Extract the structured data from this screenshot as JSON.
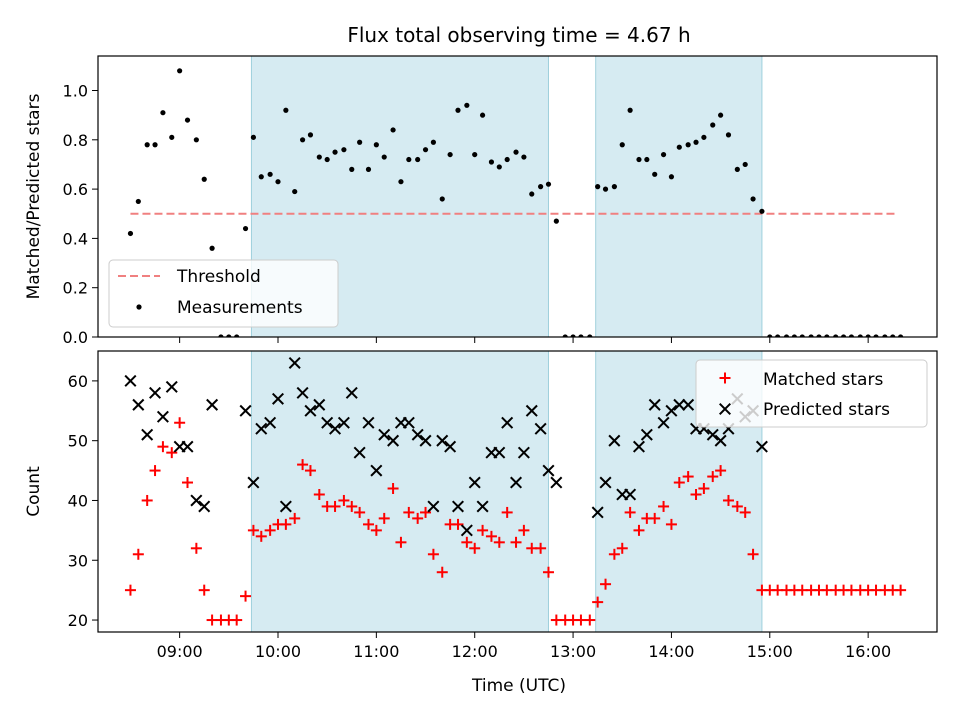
{
  "chart_data": [
    {
      "type": "scatter",
      "panel": "top",
      "title": "Flux total observing time = 4.67 h",
      "ylabel": "Matched/Predicted stars",
      "xlabel": "",
      "xlim": [
        8.17,
        16.7
      ],
      "ylim": [
        0,
        1.14
      ],
      "yticks": [
        0,
        0.2,
        0.4,
        0.6,
        0.8,
        1.0
      ],
      "ytick_labels": [
        "0.0",
        "0.2",
        "0.4",
        "0.6",
        "0.8",
        "1.0"
      ],
      "shaded_intervals": [
        [
          9.73,
          12.75
        ],
        [
          13.23,
          14.92
        ]
      ],
      "threshold": {
        "label": "Threshold",
        "value": 0.5,
        "x_range": [
          8.5,
          16.3
        ],
        "color": "#f08080"
      },
      "legend": {
        "position": "lower-left",
        "entries": [
          "Threshold",
          "Measurements"
        ]
      },
      "series": [
        {
          "name": "Measurements",
          "marker": "dot",
          "color": "#000000",
          "x": [
            8.5,
            8.58,
            8.67,
            8.75,
            8.83,
            8.92,
            9.0,
            9.08,
            9.17,
            9.25,
            9.33,
            9.42,
            9.5,
            9.58,
            9.67,
            9.75,
            9.83,
            9.92,
            10.0,
            10.08,
            10.17,
            10.25,
            10.33,
            10.42,
            10.5,
            10.58,
            10.67,
            10.75,
            10.83,
            10.92,
            11.0,
            11.08,
            11.17,
            11.25,
            11.33,
            11.42,
            11.5,
            11.58,
            11.67,
            11.75,
            11.83,
            11.92,
            12.0,
            12.08,
            12.17,
            12.25,
            12.33,
            12.42,
            12.5,
            12.58,
            12.67,
            12.75,
            12.83,
            12.92,
            13.0,
            13.08,
            13.17,
            13.25,
            13.33,
            13.42,
            13.5,
            13.58,
            13.67,
            13.75,
            13.83,
            13.92,
            14.0,
            14.08,
            14.17,
            14.25,
            14.33,
            14.42,
            14.5,
            14.58,
            14.67,
            14.75,
            14.83,
            14.92,
            15.0,
            15.08,
            15.17,
            15.25,
            15.33,
            15.42,
            15.5,
            15.58,
            15.67,
            15.75,
            15.83,
            15.92,
            16.0,
            16.08,
            16.17,
            16.25,
            16.33
          ],
          "y": [
            0.42,
            0.55,
            0.78,
            0.78,
            0.91,
            0.81,
            1.08,
            0.88,
            0.8,
            0.64,
            0.36,
            0.0,
            0.0,
            0.0,
            0.44,
            0.81,
            0.65,
            0.66,
            0.63,
            0.92,
            0.59,
            0.8,
            0.82,
            0.73,
            0.72,
            0.75,
            0.76,
            0.68,
            0.79,
            0.68,
            0.78,
            0.73,
            0.84,
            0.63,
            0.72,
            0.72,
            0.76,
            0.79,
            0.56,
            0.74,
            0.92,
            0.94,
            0.74,
            0.9,
            0.71,
            0.69,
            0.72,
            0.75,
            0.73,
            0.58,
            0.61,
            0.62,
            0.47,
            0.0,
            0.0,
            0.0,
            0.0,
            0.61,
            0.6,
            0.61,
            0.78,
            0.92,
            0.72,
            0.72,
            0.66,
            0.74,
            0.65,
            0.77,
            0.78,
            0.79,
            0.81,
            0.86,
            0.9,
            0.82,
            0.68,
            0.7,
            0.56,
            0.51,
            0.0,
            0.0,
            0.0,
            0.0,
            0.0,
            0.0,
            0.0,
            0.0,
            0.0,
            0.0,
            0.0,
            0.0,
            0.0,
            0.0,
            0.0,
            0.0,
            0.0
          ]
        }
      ]
    },
    {
      "type": "scatter",
      "panel": "bottom",
      "title": "",
      "ylabel": "Count",
      "xlabel": "Time (UTC)",
      "xlim": [
        8.17,
        16.7
      ],
      "ylim": [
        18,
        65
      ],
      "yticks": [
        20,
        30,
        40,
        50,
        60
      ],
      "ytick_labels": [
        "20",
        "30",
        "40",
        "50",
        "60"
      ],
      "xticks": [
        9,
        10,
        11,
        12,
        13,
        14,
        15,
        16
      ],
      "xtick_labels": [
        "09:00",
        "10:00",
        "11:00",
        "12:00",
        "13:00",
        "14:00",
        "15:00",
        "16:00"
      ],
      "shaded_intervals": [
        [
          9.73,
          12.75
        ],
        [
          13.23,
          14.92
        ]
      ],
      "legend": {
        "position": "top-right",
        "entries": [
          "Matched stars",
          "Predicted stars"
        ]
      },
      "series": [
        {
          "name": "Matched stars",
          "marker": "plus",
          "color": "#ff0000",
          "x": [
            8.5,
            8.58,
            8.67,
            8.75,
            8.83,
            8.92,
            9.0,
            9.08,
            9.17,
            9.25,
            9.33,
            9.42,
            9.5,
            9.58,
            9.67,
            9.75,
            9.83,
            9.92,
            10.0,
            10.08,
            10.17,
            10.25,
            10.33,
            10.42,
            10.5,
            10.58,
            10.67,
            10.75,
            10.83,
            10.92,
            11.0,
            11.08,
            11.17,
            11.25,
            11.33,
            11.42,
            11.5,
            11.58,
            11.67,
            11.75,
            11.83,
            11.92,
            12.0,
            12.08,
            12.17,
            12.25,
            12.33,
            12.42,
            12.5,
            12.58,
            12.67,
            12.75,
            12.83,
            12.92,
            13.0,
            13.08,
            13.17,
            13.25,
            13.33,
            13.42,
            13.5,
            13.58,
            13.67,
            13.75,
            13.83,
            13.92,
            14.0,
            14.08,
            14.17,
            14.25,
            14.33,
            14.42,
            14.5,
            14.58,
            14.67,
            14.75,
            14.83,
            14.92,
            15.0,
            15.08,
            15.17,
            15.25,
            15.33,
            15.42,
            15.5,
            15.58,
            15.67,
            15.75,
            15.83,
            15.92,
            16.0,
            16.08,
            16.17,
            16.25,
            16.33
          ],
          "y": [
            25,
            31,
            40,
            45,
            49,
            48,
            53,
            43,
            32,
            25,
            20,
            20,
            20,
            20,
            24,
            35,
            34,
            35,
            36,
            36,
            37,
            46,
            45,
            41,
            39,
            39,
            40,
            39,
            38,
            36,
            35,
            37,
            42,
            33,
            38,
            37,
            38,
            31,
            28,
            36,
            36,
            33,
            32,
            35,
            34,
            33,
            38,
            33,
            35,
            32,
            32,
            28,
            20,
            20,
            20,
            20,
            20,
            23,
            26,
            31,
            32,
            38,
            35,
            37,
            37,
            39,
            36,
            43,
            44,
            41,
            42,
            44,
            45,
            40,
            39,
            38,
            31,
            25,
            25,
            25,
            25,
            25,
            25,
            25,
            25,
            25,
            25,
            25,
            25,
            25,
            25,
            25,
            25,
            25,
            25
          ]
        },
        {
          "name": "Predicted stars",
          "marker": "x",
          "color": "#000000",
          "x": [
            8.5,
            8.58,
            8.67,
            8.75,
            8.83,
            8.92,
            9.0,
            9.08,
            9.17,
            9.25,
            9.33,
            9.67,
            9.75,
            9.83,
            9.92,
            10.0,
            10.08,
            10.17,
            10.25,
            10.33,
            10.42,
            10.5,
            10.58,
            10.67,
            10.75,
            10.83,
            10.92,
            11.0,
            11.08,
            11.17,
            11.25,
            11.33,
            11.42,
            11.5,
            11.58,
            11.67,
            11.75,
            11.83,
            11.92,
            12.0,
            12.08,
            12.17,
            12.25,
            12.33,
            12.42,
            12.5,
            12.58,
            12.67,
            12.75,
            12.83,
            13.25,
            13.33,
            13.42,
            13.5,
            13.58,
            13.67,
            13.75,
            13.83,
            13.92,
            14.0,
            14.08,
            14.17,
            14.25,
            14.33,
            14.42,
            14.5,
            14.58,
            14.67,
            14.75,
            14.83,
            14.92
          ],
          "y": [
            60,
            56,
            51,
            58,
            54,
            59,
            49,
            49,
            40,
            39,
            56,
            55,
            43,
            52,
            53,
            57,
            39,
            63,
            58,
            55,
            56,
            53,
            52,
            53,
            58,
            48,
            53,
            45,
            51,
            50,
            53,
            53,
            51,
            50,
            39,
            50,
            49,
            39,
            35,
            43,
            39,
            48,
            48,
            53,
            43,
            48,
            55,
            52,
            45,
            43,
            38,
            43,
            50,
            41,
            41,
            49,
            51,
            56,
            53,
            55,
            56,
            56,
            52,
            52,
            51,
            50,
            52,
            57,
            54,
            55,
            49
          ]
        }
      ]
    }
  ]
}
